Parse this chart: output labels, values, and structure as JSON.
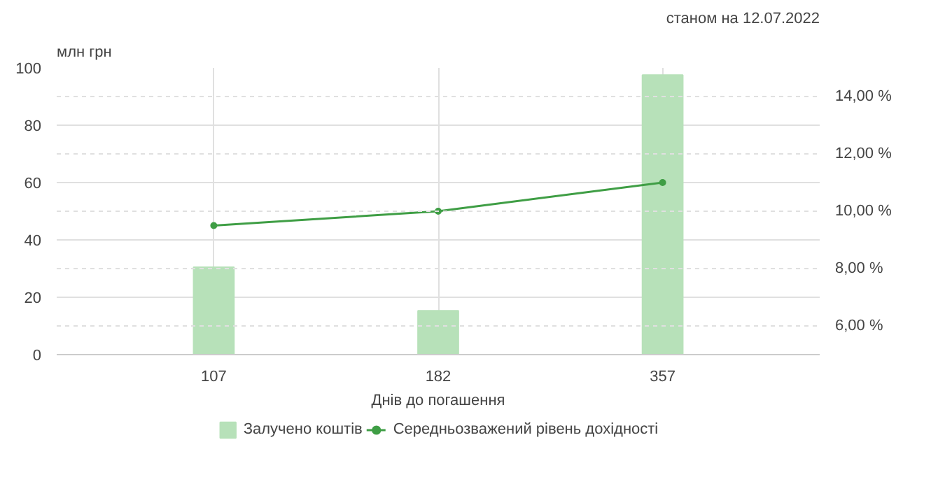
{
  "chart_data": {
    "type": "bar",
    "ylabel": "млн грн",
    "xlabel": "Днів до погашення",
    "annotations": [
      "станом на 12.07.2022"
    ],
    "categories": [
      "107",
      "182",
      "357"
    ],
    "series": [
      {
        "name": "Залучено коштів",
        "color": "#b7e1b9",
        "values": [
          30.5,
          15.3,
          97.5
        ]
      },
      {
        "name": "Середньозважений рівень дохідності",
        "type": "line",
        "axis": "y2",
        "color": "#3f9e45",
        "values": [
          9.5,
          10.0,
          11.0
        ],
        "marker": "circle"
      }
    ],
    "ylim": [
      0,
      100
    ],
    "yticks": [
      0,
      20,
      40,
      60,
      80,
      100
    ],
    "y2lim": [
      5,
      15
    ],
    "y2ticks": [
      {
        "value": 6,
        "label": "6,00 %"
      },
      {
        "value": 8,
        "label": "8,00 %"
      },
      {
        "value": 10,
        "label": "10,00 %"
      },
      {
        "value": 12,
        "label": "12,00 %"
      },
      {
        "value": 14,
        "label": "14,00 %"
      }
    ],
    "grid": true,
    "legend": "bottom"
  }
}
